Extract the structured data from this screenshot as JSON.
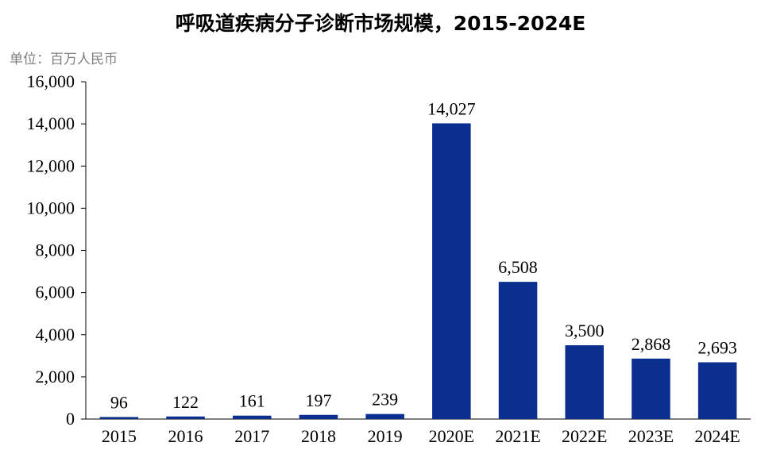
{
  "chart_data": {
    "type": "bar",
    "title": "呼吸道疾病分子诊断市场规模，2015-2024E",
    "unit_label": "单位：百万人民币",
    "categories": [
      "2015",
      "2016",
      "2017",
      "2018",
      "2019",
      "2020E",
      "2021E",
      "2022E",
      "2023E",
      "2024E"
    ],
    "values": [
      96,
      122,
      161,
      197,
      239,
      14027,
      6508,
      3500,
      2868,
      2693
    ],
    "value_labels": [
      "96",
      "122",
      "161",
      "197",
      "239",
      "14,027",
      "6,508",
      "3,500",
      "2,868",
      "2,693"
    ],
    "ylim": [
      0,
      16000
    ],
    "yticks": [
      0,
      2000,
      4000,
      6000,
      8000,
      10000,
      12000,
      14000,
      16000
    ],
    "ytick_labels": [
      "0",
      "2,000",
      "4,000",
      "6,000",
      "8,000",
      "10,000",
      "12,000",
      "14,000",
      "16,000"
    ],
    "bar_color": "#0A2F8F",
    "grid": false,
    "legend": "none"
  }
}
